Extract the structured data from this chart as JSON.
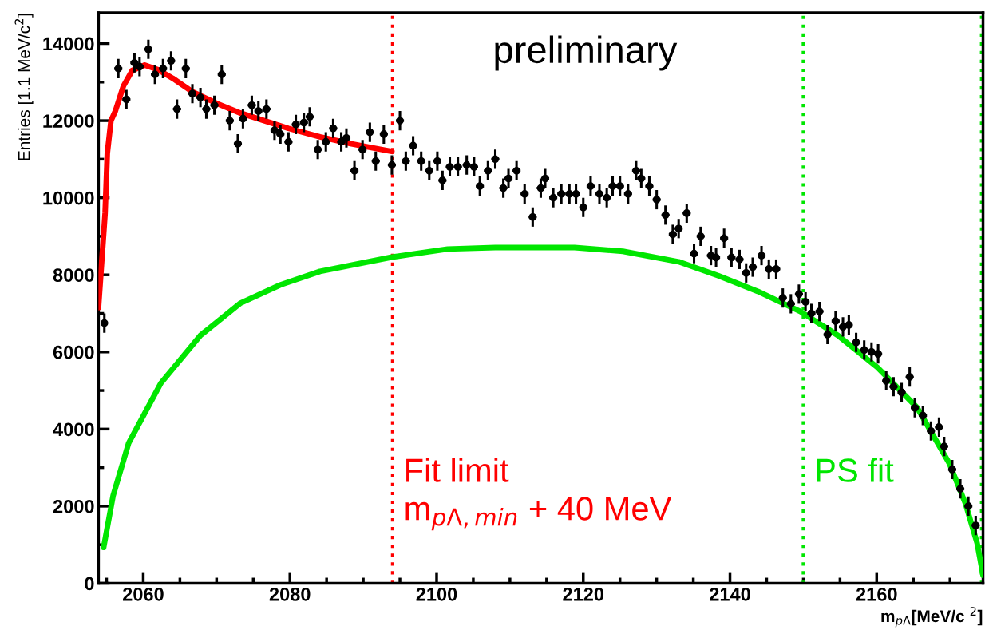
{
  "chart_data": {
    "type": "scatter",
    "xlabel": "m$_{pΛ}$[MeV/c $^{2}$]",
    "ylabel": "Entries [1.1 MeV/c$^{2}$]",
    "xlim": [
      2053.9,
      2174.5
    ],
    "xticks": [
      2060,
      2080,
      2100,
      2120,
      2140,
      2160
    ],
    "ylim": [
      0,
      14800
    ],
    "yticks": [
      0,
      2000,
      4000,
      6000,
      8000,
      10000,
      12000,
      14000
    ],
    "grid": false,
    "legend": false,
    "annotations": [
      "preliminary"
    ],
    "ref_lines": [
      {
        "axis": "x",
        "value": 2094,
        "label": "Fit limit\nm$_{pΛ,min}$ + 40 MeV",
        "color": "#ff0000",
        "line_style": "dotted"
      },
      {
        "axis": "x",
        "value": 2150,
        "label": "PS fit",
        "color": "#00e600",
        "line_style": "dotted"
      },
      {
        "axis": "x",
        "value": 2174.3,
        "color": "#00e600",
        "line_style": "dotted"
      }
    ],
    "series": [
      {
        "color": "#000000",
        "marker": "circle",
        "x": [
          2054.7,
          2056.6,
          2057.7,
          2058.8,
          2059.5,
          2060.7,
          2061.6,
          2062.7,
          2063.8,
          2064.6,
          2065.8,
          2066.7,
          2067.8,
          2068.6,
          2069.7,
          2070.7,
          2071.8,
          2072.9,
          2073.6,
          2074.8,
          2075.7,
          2076.8,
          2077.9,
          2078.7,
          2079.8,
          2080.8,
          2081.9,
          2082.7,
          2083.8,
          2084.9,
          2085.9,
          2087.0,
          2087.7,
          2088.8,
          2089.9,
          2090.9,
          2091.7,
          2092.8,
          2093.9,
          2095.0,
          2095.8,
          2096.8,
          2097.9,
          2099.0,
          2100.1,
          2100.8,
          2101.8,
          2102.9,
          2104.1,
          2105.1,
          2105.9,
          2107.0,
          2108.0,
          2109.1,
          2109.8,
          2110.9,
          2112.0,
          2113.1,
          2114.2,
          2114.8,
          2115.9,
          2117.0,
          2118.1,
          2119.0,
          2120.0,
          2121.0,
          2122.2,
          2123.2,
          2124.0,
          2125.0,
          2126.1,
          2127.2,
          2127.9,
          2129.0,
          2130.0,
          2131.2,
          2132.2,
          2133.0,
          2134.1,
          2135.1,
          2136.0,
          2137.4,
          2138.1,
          2139.2,
          2140.2,
          2141.3,
          2142.2,
          2143.1,
          2144.3,
          2145.3,
          2146.3,
          2147.2,
          2148.3,
          2149.4,
          2150.3,
          2151.1,
          2152.2,
          2153.3,
          2154.4,
          2155.4,
          2156.2,
          2157.2,
          2158.3,
          2159.3,
          2160.2,
          2161.3,
          2162.3,
          2163.4,
          2164.5,
          2165.2,
          2166.3,
          2167.4,
          2168.5,
          2169.2,
          2170.3,
          2171.4,
          2172.5,
          2173.5
        ],
        "values": [
          6750,
          13350,
          12550,
          13500,
          13400,
          13850,
          13200,
          13350,
          13550,
          12300,
          13350,
          12700,
          12600,
          12300,
          12400,
          13200,
          12000,
          11400,
          12050,
          12400,
          12250,
          12300,
          11750,
          11650,
          11450,
          11900,
          11950,
          12100,
          11250,
          11450,
          11800,
          11450,
          11550,
          10700,
          11250,
          11700,
          10950,
          11650,
          10850,
          12000,
          10950,
          11350,
          10950,
          10700,
          10950,
          10450,
          10800,
          10800,
          10850,
          10800,
          10300,
          10700,
          11000,
          10250,
          10500,
          10700,
          10100,
          9500,
          10250,
          10500,
          10000,
          10100,
          10100,
          10100,
          9750,
          10300,
          10100,
          10000,
          10300,
          10300,
          10100,
          10700,
          10500,
          10300,
          9950,
          9550,
          9050,
          9200,
          9600,
          8550,
          9000,
          8500,
          8450,
          8950,
          8450,
          8400,
          8050,
          8200,
          8500,
          8150,
          8150,
          7400,
          7250,
          7500,
          7300,
          7000,
          7050,
          6450,
          6800,
          6650,
          6700,
          6250,
          6050,
          6000,
          5950,
          5250,
          5100,
          4950,
          5350,
          4550,
          4350,
          3950,
          4050,
          3550,
          2950,
          2450,
          2000,
          1500
        ],
        "errors": [
          250,
          250,
          250,
          250,
          250,
          250,
          250,
          250,
          250,
          250,
          250,
          250,
          250,
          250,
          250,
          250,
          250,
          250,
          250,
          250,
          250,
          250,
          250,
          250,
          250,
          250,
          250,
          250,
          250,
          250,
          250,
          250,
          250,
          250,
          250,
          250,
          250,
          250,
          250,
          250,
          250,
          250,
          250,
          250,
          250,
          250,
          250,
          250,
          250,
          250,
          250,
          250,
          250,
          250,
          250,
          250,
          250,
          250,
          250,
          250,
          250,
          250,
          250,
          250,
          250,
          250,
          250,
          250,
          250,
          250,
          250,
          250,
          250,
          250,
          250,
          250,
          250,
          250,
          250,
          250,
          250,
          250,
          250,
          250,
          250,
          250,
          250,
          250,
          250,
          250,
          250,
          250,
          250,
          250,
          250,
          250,
          250,
          250,
          250,
          250,
          250,
          250,
          250,
          250,
          250,
          250,
          250,
          250,
          250,
          250,
          250,
          250,
          250,
          250,
          250,
          250,
          250,
          250
        ],
        "xerrors": [
          null,
          0.55,
          0.55,
          0.55,
          0.55,
          0.55,
          0.55,
          0.55,
          0.55,
          0.55,
          0.55,
          0.55,
          0.55,
          0.55,
          0.55,
          0.55,
          0.55,
          0.55,
          0.55,
          0.55,
          0.55,
          0.55,
          0.55,
          0.55,
          0.55,
          0.55,
          0.55,
          0.55,
          0.55,
          0.55,
          0.55,
          0.55,
          0.55,
          0.55,
          0.55,
          0.55,
          0.55,
          0.55,
          0.55,
          0.55,
          0.55,
          0.55,
          0.55,
          0.55,
          0.55,
          0.55,
          0.55,
          0.55,
          0.55,
          0.55,
          0.55,
          0.55,
          0.55,
          0.55,
          0.55,
          0.55,
          0.55,
          0.55,
          0.55,
          0.55,
          0.55,
          0.55,
          0.55,
          0.55,
          0.55,
          0.55,
          0.55,
          0.55,
          0.55,
          0.55,
          0.55,
          0.55,
          0.55,
          0.55,
          0.55,
          0.55,
          0.55,
          0.55,
          0.55,
          0.55,
          0.55,
          0.55,
          0.55,
          0.55,
          0.55,
          0.55,
          0.55,
          0.55,
          0.55,
          0.55,
          0.55,
          0.55,
          0.55,
          0.55,
          0.55,
          0.55,
          0.55,
          0.55,
          0.55,
          0.55,
          0.55,
          0.55,
          0.55,
          0.55,
          0.55,
          0.55,
          0.55,
          0.55,
          0.55,
          0.55,
          0.55,
          0.55,
          0.55,
          0.55,
          0.55,
          0.55,
          0.55,
          0.55
        ]
      },
      {
        "type": "line",
        "color": "#ff0000",
        "line_style": "solid",
        "x": [
          2053.9,
          2054.8,
          2055.1,
          2055.6,
          2056.2,
          2057.3,
          2058.5,
          2060.2,
          2062.0,
          2064.0,
          2066.7,
          2070.0,
          2073.2,
          2076.5,
          2079.8,
          2084.1,
          2088.4,
          2091.7,
          2093.9
        ],
        "values": [
          7150,
          9600,
          11150,
          12000,
          12250,
          12900,
          13300,
          13440,
          13320,
          13100,
          12750,
          12450,
          12200,
          12000,
          11800,
          11580,
          11400,
          11280,
          11200
        ]
      },
      {
        "type": "line",
        "color": "#00e600",
        "line_style": "solid",
        "x": [
          2054.6,
          2055.9,
          2058.0,
          2062.4,
          2067.8,
          2073.2,
          2078.7,
          2084.1,
          2093.9,
          2101.5,
          2108.0,
          2118.8,
          2125.4,
          2133.0,
          2138.4,
          2143.8,
          2149.6,
          2154.7,
          2160.1,
          2165.5,
          2169.9,
          2172.1,
          2173.7,
          2174.5
        ],
        "values": [
          930,
          2280,
          3630,
          5190,
          6430,
          7260,
          7740,
          8090,
          8460,
          8670,
          8710,
          8710,
          8610,
          8340,
          7980,
          7570,
          7050,
          6430,
          5600,
          4560,
          3110,
          2070,
          1040,
          210
        ]
      }
    ]
  }
}
